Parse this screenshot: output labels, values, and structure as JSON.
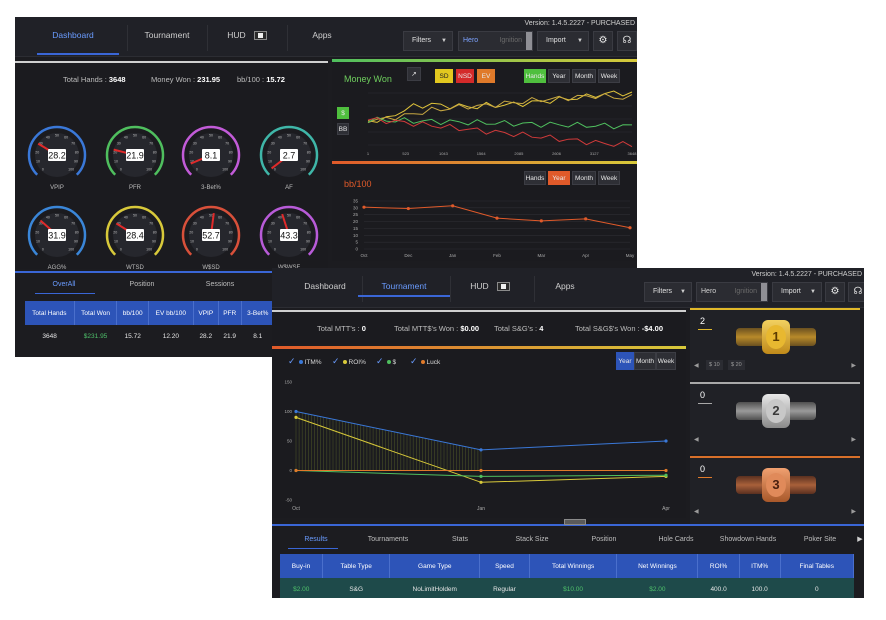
{
  "dashboard": {
    "version": "Version: 1.4.5.2227 - PURCHASED",
    "nav": [
      "Dashboard",
      "Tournament",
      "HUD",
      "Apps"
    ],
    "filters_label": "Filters",
    "hero": "Hero",
    "ignition": "Ignition",
    "import_label": "Import",
    "stats": {
      "total_hands_label": "Total Hands :",
      "total_hands": "3648",
      "money_won_label": "Money Won :",
      "money_won": "231.95",
      "bb100_label": "bb/100 :",
      "bb100": "15.72"
    },
    "gauges": [
      {
        "label": "VPIP",
        "value": "28.2",
        "color": "#3a78d8"
      },
      {
        "label": "PFR",
        "value": "21.9",
        "color": "#4fbf5e"
      },
      {
        "label": "3-Bet%",
        "value": "8.1",
        "color": "#c25bd8"
      },
      {
        "label": "AF",
        "value": "2.7",
        "color": "#3fb6a8"
      },
      {
        "label": "AGG%",
        "value": "31.9",
        "color": "#3a86d8"
      },
      {
        "label": "WTSD",
        "value": "28.4",
        "color": "#d8c93a"
      },
      {
        "label": "W$SD",
        "value": "52.7",
        "color": "#d8503a"
      },
      {
        "label": "W$WSF",
        "value": "43.3",
        "color": "#b85bd8"
      }
    ],
    "gauge_ticks": [
      "0",
      "10",
      "20",
      "30",
      "40",
      "50",
      "60",
      "70",
      "80",
      "90",
      "100"
    ],
    "money_won_title": "Money Won",
    "sd_buttons": [
      "SD",
      "NSD",
      "EV"
    ],
    "range_buttons": [
      "Hands",
      "Year",
      "Month",
      "Week"
    ],
    "unit_buttons": [
      "$",
      "BB"
    ],
    "bb100_title": "bb/100",
    "subtabs": [
      "OverAll",
      "Position",
      "Sessions"
    ],
    "table_headers": [
      "Total Hands",
      "Total Won",
      "bb/100",
      "EV bb/100",
      "VPIP",
      "PFR",
      "3-Bet%"
    ],
    "table_row": [
      "3648",
      "$231.95",
      "15.72",
      "12.20",
      "28.2",
      "21.9",
      "8.1"
    ]
  },
  "money_chart": {
    "type": "line",
    "x_ticks": [
      "1",
      "523",
      "1043",
      "1564",
      "2085",
      "2606",
      "3127",
      "3648"
    ],
    "series": [
      {
        "color": "#e0c43a",
        "values": [
          -10,
          -5,
          0,
          60,
          100,
          140,
          150,
          160,
          150,
          145,
          140,
          140,
          135,
          150,
          150,
          155,
          160,
          170,
          180,
          190,
          200,
          210,
          220,
          230,
          240,
          260,
          270,
          280,
          280,
          270
        ]
      },
      {
        "color": "#c8a842",
        "values": [
          -5,
          0,
          5,
          30,
          40,
          60,
          80,
          100,
          110,
          120,
          130,
          140,
          140,
          150,
          160,
          170,
          180,
          190,
          200,
          210,
          220,
          220,
          230,
          240,
          240,
          250,
          245,
          235,
          232,
          232
        ]
      },
      {
        "color": "#4fbf5e",
        "values": [
          0,
          -2,
          -5,
          -8,
          -10,
          -12,
          -15,
          -18,
          -20,
          -22,
          -25,
          -28,
          -30,
          -32,
          -35,
          -38,
          -40,
          -42,
          -45,
          -48,
          -50,
          -52,
          -55,
          -58,
          -60,
          -62,
          -64,
          -65,
          -66,
          -67
        ]
      },
      {
        "color": "#d03a3a",
        "values": [
          0,
          -5,
          -10,
          -20,
          -30,
          -40,
          -50,
          -60,
          -70,
          -80,
          -90,
          -100,
          -110,
          -120,
          -130,
          -140,
          -150,
          -160,
          -170,
          -180,
          -190,
          -200,
          -210,
          -220,
          -230,
          -240,
          -250,
          -255,
          -260,
          -265
        ]
      }
    ]
  },
  "bb_chart": {
    "type": "line",
    "categories": [
      "Oct",
      "Dec",
      "Jan",
      "Feb",
      "Mar",
      "Apr",
      "May"
    ],
    "y_ticks": [
      "35",
      "30",
      "25",
      "20",
      "15",
      "10",
      "5",
      "0"
    ],
    "values": [
      30.5,
      29.5,
      31.5,
      22.5,
      20.5,
      22,
      15.5
    ]
  },
  "tournament": {
    "version": "Version: 1.4.5.2227 - PURCHASED",
    "nav": [
      "Dashboard",
      "Tournament",
      "HUD",
      "Apps"
    ],
    "filters_label": "Filters",
    "hero": "Hero",
    "ignition": "Ignition",
    "import_label": "Import",
    "stats": {
      "mtt_label": "Total MTT's :",
      "mtt": "0",
      "mtt_won_label": "Total MTT$'s Won :",
      "mtt_won": "$0.00",
      "sng_label": "Total S&G's :",
      "sng": "4",
      "sng_won_label": "Total S&G$'s Won :",
      "sng_won": "-$4.00"
    },
    "checks": [
      {
        "label": "ITM%",
        "color": "#3a78d8"
      },
      {
        "label": "ROI%",
        "color": "#d8c93a"
      },
      {
        "label": "$",
        "color": "#4fbf5e"
      },
      {
        "label": "Luck",
        "color": "#e07a2a"
      }
    ],
    "range_buttons": [
      "Year",
      "Month",
      "Week"
    ],
    "places": [
      {
        "count": "2",
        "rank": "1",
        "chips": [
          "$ 10",
          "$ 20"
        ]
      },
      {
        "count": "0",
        "rank": "2",
        "chips": []
      },
      {
        "count": "0",
        "rank": "3",
        "chips": []
      }
    ],
    "subtabs": [
      "Results",
      "Tournaments",
      "Stats",
      "Stack Size",
      "Position",
      "Hole Cards",
      "Showdown Hands",
      "Poker Site"
    ],
    "table_headers": [
      "Buy-in",
      "Table Type",
      "Game Type",
      "Speed",
      "Total Winnings",
      "Net Winnings",
      "ROI%",
      "ITM%",
      "Final Tables"
    ],
    "table_row": [
      "$2.00",
      "S&G",
      "NoLimitHoldem",
      "Regular",
      "$10.00",
      "$2.00",
      "400.0",
      "100.0",
      "0"
    ]
  },
  "tourney_chart": {
    "type": "line",
    "categories": [
      "Oct",
      "Jan",
      "Apr"
    ],
    "y_ticks": [
      "150",
      "100",
      "50",
      "0",
      "-50"
    ],
    "series": [
      {
        "name": "ITM%",
        "color": "#3a78d8",
        "values": [
          100,
          35,
          50
        ]
      },
      {
        "name": "ROI%",
        "color": "#d8c93a",
        "values": [
          90,
          -20,
          -10
        ]
      },
      {
        "name": "$",
        "color": "#4fbf5e",
        "values": [
          0,
          -10,
          -8
        ]
      },
      {
        "name": "Luck",
        "color": "#e07a2a",
        "values": [
          0,
          0,
          0
        ]
      }
    ]
  }
}
